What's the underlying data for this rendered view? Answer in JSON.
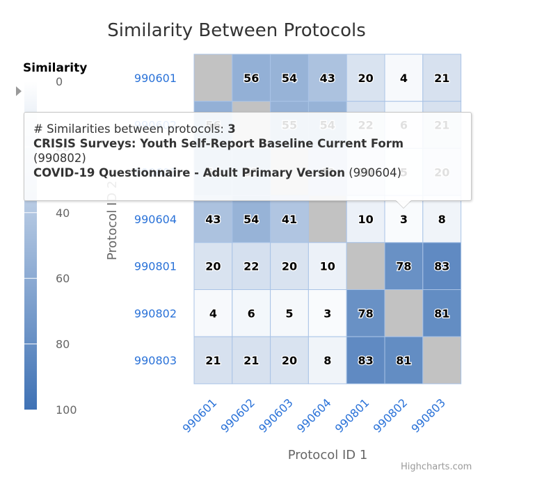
{
  "chart_data": {
    "type": "heatmap",
    "title": "Similarity Between Protocols",
    "xlabel": "Protocol ID 1",
    "ylabel": "Protocol ID 2",
    "categories_x": [
      "990601",
      "990602",
      "990603",
      "990604",
      "990801",
      "990802",
      "990803"
    ],
    "categories_y": [
      "990601",
      "990602",
      "990603",
      "990604",
      "990801",
      "990802",
      "990803"
    ],
    "matrix": [
      [
        null,
        56,
        54,
        43,
        20,
        4,
        21
      ],
      [
        56,
        null,
        55,
        54,
        22,
        6,
        21
      ],
      [
        54,
        55,
        null,
        41,
        20,
        5,
        20
      ],
      [
        43,
        54,
        41,
        null,
        10,
        3,
        8
      ],
      [
        20,
        22,
        20,
        10,
        null,
        78,
        83
      ],
      [
        4,
        6,
        5,
        3,
        78,
        null,
        81
      ],
      [
        21,
        21,
        20,
        8,
        83,
        81,
        null
      ]
    ],
    "color_axis": {
      "title": "Similarity",
      "min": 0,
      "max": 100,
      "ticks": [
        0,
        20,
        40,
        60,
        80,
        100
      ],
      "min_color": "#ffffff",
      "max_color": "#3f72b5",
      "null_color": "#c2c2c2",
      "marker_value": 3
    },
    "colors": {
      "category_label": "#2a72d8",
      "title": "#333333",
      "axis_title": "#666666"
    }
  },
  "tooltip": {
    "count_label": "# Similarities between protocols: ",
    "count_value": "3",
    "protocol_a_name": "CRISIS Surveys: Youth Self-Report Baseline Current Form",
    "protocol_a_id": "(990802)",
    "protocol_b_name": "COVID-19 Questionnaire - Adult Primary Version",
    "protocol_b_id": "(990604)"
  },
  "credits": "Highcharts.com"
}
